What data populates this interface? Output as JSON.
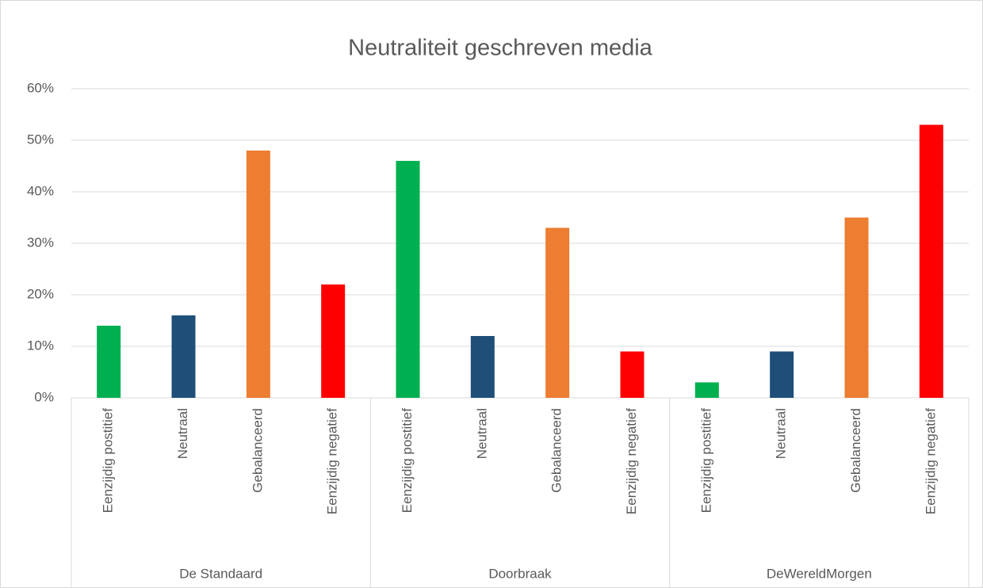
{
  "chart_data": {
    "type": "bar",
    "title": "Neutraliteit geschreven media",
    "categories": [
      "Eenzijdig postitief",
      "Neutraal",
      "Gebalanceerd",
      "Eenzijdig negatief",
      "Eenzijdig postitief",
      "Neutraal",
      "Gebalanceerd",
      "Eenzijdig negatief",
      "Eenzijdig postitief",
      "Neutraal",
      "Gebalanceerd",
      "Eenzijdig negatief"
    ],
    "groups": [
      "De Standaard",
      "Doorbraak",
      "DeWereldMorgen"
    ],
    "values": [
      14,
      16,
      48,
      22,
      46,
      12,
      33,
      9,
      3,
      9,
      35,
      53
    ],
    "colors": [
      "#00b050",
      "#1f4e79",
      "#ed7d31",
      "#ff0000",
      "#00b050",
      "#1f4e79",
      "#ed7d31",
      "#ff0000",
      "#00b050",
      "#1f4e79",
      "#ed7d31",
      "#ff0000"
    ],
    "ylim": [
      0,
      60
    ],
    "yticks": [
      {
        "value": 0,
        "label": "0%"
      },
      {
        "value": 10,
        "label": "10%"
      },
      {
        "value": 20,
        "label": "20%"
      },
      {
        "value": 30,
        "label": "30%"
      },
      {
        "value": 40,
        "label": "40%"
      },
      {
        "value": 50,
        "label": "50%"
      },
      {
        "value": 60,
        "label": "60%"
      }
    ],
    "grid": true
  }
}
